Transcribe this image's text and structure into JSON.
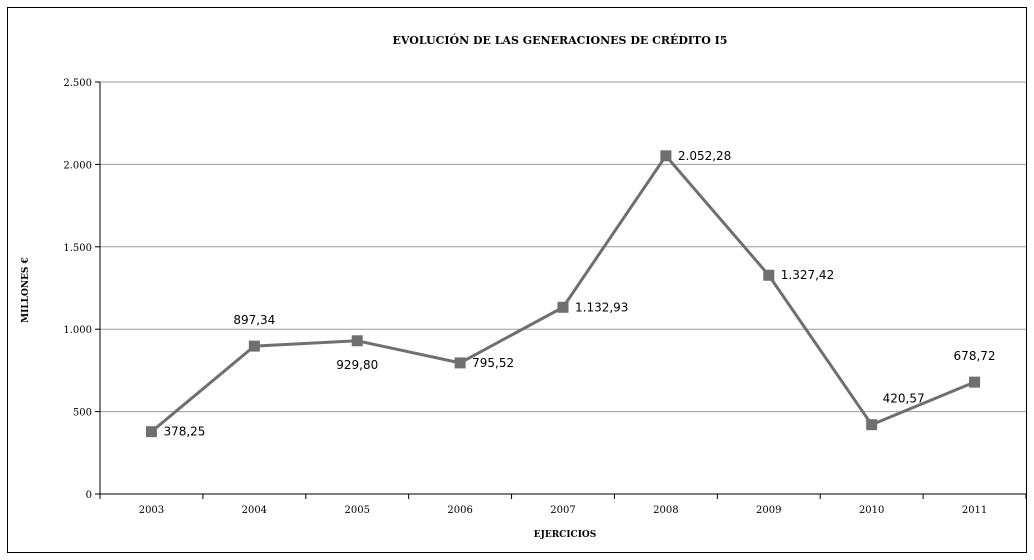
{
  "chart_data": {
    "type": "line",
    "title": "EVOLUCIÓN DE LAS GENERACIONES DE CRÉDITO I5",
    "xlabel": "EJERCICIOS",
    "ylabel": "MILLONES €",
    "categories": [
      "2003",
      "2004",
      "2005",
      "2006",
      "2007",
      "2008",
      "2009",
      "2010",
      "2011"
    ],
    "series": [
      {
        "values": [
          378.25,
          897.34,
          929.8,
          795.52,
          1132.93,
          2052.28,
          1327.42,
          420.57,
          678.72
        ],
        "labels": [
          "378,25",
          "897,34",
          "929,80",
          "795,52",
          "1.132,93",
          "2.052,28",
          "1.327,42",
          "420,57",
          "678,72"
        ]
      }
    ],
    "ylim": [
      0,
      2500
    ],
    "yticks": [
      0,
      500,
      1000,
      1500,
      2000,
      2500
    ],
    "ytick_labels": [
      "0",
      "500",
      "1.000",
      "1.500",
      "2.000",
      "2.500"
    ],
    "grid": true,
    "colors": {
      "line": "#6f6f6f",
      "marker": "#6f6f6f",
      "grid": "#9a9a9a",
      "axis": "#000000"
    }
  }
}
